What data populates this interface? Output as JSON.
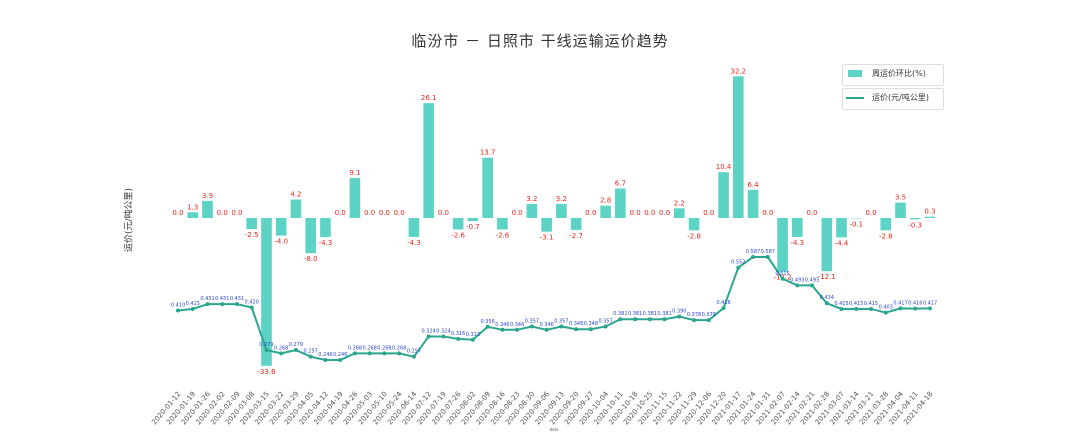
{
  "colors": {
    "bar": "#5cd3c5",
    "line": "#2ba58e",
    "bar_label": "#e8261c",
    "point_label": "#2a46d8",
    "axis_text": "#555555"
  },
  "chart_data": {
    "type": "bar",
    "title": "临汾市 － 日照市 干线运输运价趋势",
    "ylabel": "运价(元/吨公里)",
    "xlabel": "date",
    "legend_position": "top-right",
    "grid": false,
    "categories": [
      "2020-01-12",
      "2020-01-19",
      "2020-01-26",
      "2020-02-02",
      "2020-02-09",
      "2020-03-08",
      "2020-03-15",
      "2020-03-22",
      "2020-03-29",
      "2020-04-05",
      "2020-04-12",
      "2020-04-19",
      "2020-04-26",
      "2020-05-03",
      "2020-05-10",
      "2020-05-24",
      "2020-06-14",
      "2020-07-12",
      "2020-07-19",
      "2020-07-26",
      "2020-08-02",
      "2020-08-09",
      "2020-08-16",
      "2020-08-23",
      "2020-08-30",
      "2020-09-06",
      "2020-09-13",
      "2020-09-20",
      "2020-09-27",
      "2020-10-04",
      "2020-10-11",
      "2020-10-18",
      "2020-10-25",
      "2020-11-15",
      "2020-11-22",
      "2020-11-29",
      "2020-12-06",
      "2020-12-20",
      "2021-01-17",
      "2021-01-24",
      "2021-01-31",
      "2021-02-07",
      "2021-02-14",
      "2021-02-21",
      "2021-02-28",
      "2021-03-07",
      "2021-03-14",
      "2021-03-21",
      "2021-03-28",
      "2021-04-04",
      "2021-04-11",
      "2021-04-18"
    ],
    "series": [
      {
        "name": "周运价环比(%)",
        "type": "bar",
        "values": [
          0.0,
          1.3,
          3.9,
          0.0,
          0.0,
          -2.5,
          -33.6,
          -4.0,
          4.2,
          -8.0,
          -4.3,
          0.0,
          9.1,
          0.0,
          0.0,
          0.0,
          -4.3,
          26.1,
          0.0,
          -2.6,
          -0.7,
          13.7,
          -2.6,
          0.0,
          3.2,
          -3.1,
          3.2,
          -2.7,
          0.0,
          2.8,
          6.7,
          0.0,
          0.0,
          0.0,
          2.2,
          -2.8,
          0.0,
          10.4,
          32.2,
          6.4,
          0.0,
          -12.2,
          -4.3,
          0.0,
          -12.1,
          -4.4,
          -0.1,
          0.0,
          -2.8,
          3.5,
          -0.3,
          0.3
        ],
        "labels": [
          "0.0",
          "1.3",
          "3.9",
          "0.0",
          "0.0",
          "-2.5",
          "-33.6",
          "-4.0",
          "4.2",
          "-8.0",
          "-4.3",
          "0.0",
          "9.1",
          "0.0",
          "0.0",
          "0.0",
          "-4.3",
          "26.1",
          "0.0",
          "-2.6",
          "-0.7",
          "13.7",
          "-2.6",
          "0.0",
          "3.2",
          "-3.1",
          "3.2",
          "-2.7",
          "0.0",
          "2.8",
          "6.7",
          "0.0",
          "0.0",
          "0.0",
          "2.2",
          "-2.8",
          "0.0",
          "10.4",
          "32.2",
          "6.4",
          "0.0",
          "-12.2",
          "-4.3",
          "0.0",
          "-12.1",
          "-4.4",
          "-0.1",
          "0.0",
          "-2.8",
          "3.5",
          "-0.3",
          "0.3"
        ]
      },
      {
        "name": "运价(元/吨公里)",
        "type": "line",
        "values": [
          0.41,
          0.415,
          0.431,
          0.431,
          0.431,
          0.42,
          0.279,
          0.268,
          0.279,
          0.257,
          0.246,
          0.246,
          0.268,
          0.268,
          0.268,
          0.268,
          0.257,
          0.324,
          0.324,
          0.316,
          0.313,
          0.356,
          0.346,
          0.346,
          0.357,
          0.346,
          0.357,
          0.348,
          0.348,
          0.357,
          0.381,
          0.381,
          0.381,
          0.381,
          0.39,
          0.378,
          0.378,
          0.418,
          0.552,
          0.587,
          0.587,
          0.515,
          0.493,
          0.493,
          0.434,
          0.415,
          0.415,
          0.415,
          0.403,
          0.417,
          0.416,
          0.417
        ]
      }
    ]
  }
}
